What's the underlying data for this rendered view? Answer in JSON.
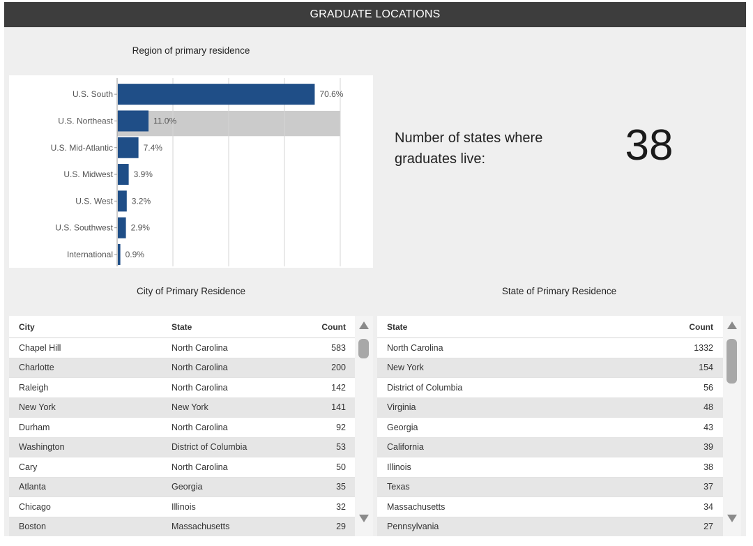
{
  "header": {
    "title": "GRADUATE LOCATIONS"
  },
  "chart_data": {
    "type": "bar",
    "orientation": "horizontal",
    "title": "Region of primary residence",
    "xlabel": "",
    "ylabel": "",
    "categories": [
      "U.S. South",
      "U.S. Northeast",
      "U.S. Mid-Atlantic",
      "U.S. Midwest",
      "U.S. West",
      "U.S. Southwest",
      "International"
    ],
    "values": [
      70.6,
      11.0,
      7.4,
      3.9,
      3.2,
      2.9,
      0.9
    ],
    "value_labels": [
      "70.6%",
      "11.0%",
      "7.4%",
      "3.9%",
      "3.2%",
      "2.9%",
      "0.9%"
    ],
    "xlim": [
      0,
      80
    ],
    "grid": true,
    "highlighted_category": "U.S. Northeast",
    "colors": {
      "bar": "#1f4e87",
      "highlight": "#cbcbcb",
      "grid": "#d4d4d4"
    }
  },
  "kpi": {
    "label": "Number of states where graduates live:",
    "value": "38"
  },
  "city_table": {
    "title": "City of Primary Residence",
    "columns": [
      "City",
      "State",
      "Count"
    ],
    "rows": [
      [
        "Chapel Hill",
        "North Carolina",
        "583"
      ],
      [
        "Charlotte",
        "North Carolina",
        "200"
      ],
      [
        "Raleigh",
        "North Carolina",
        "142"
      ],
      [
        "New York",
        "New York",
        "141"
      ],
      [
        "Durham",
        "North Carolina",
        "92"
      ],
      [
        "Washington",
        "District of Columbia",
        "53"
      ],
      [
        "Cary",
        "North Carolina",
        "50"
      ],
      [
        "Atlanta",
        "Georgia",
        "35"
      ],
      [
        "Chicago",
        "Illinois",
        "32"
      ],
      [
        "Boston",
        "Massachusetts",
        "29"
      ]
    ]
  },
  "state_table": {
    "title": "State of Primary Residence",
    "columns": [
      "State",
      "Count"
    ],
    "rows": [
      [
        "North Carolina",
        "1332"
      ],
      [
        "New York",
        "154"
      ],
      [
        "District of Columbia",
        "56"
      ],
      [
        "Virginia",
        "48"
      ],
      [
        "Georgia",
        "43"
      ],
      [
        "California",
        "39"
      ],
      [
        "Illinois",
        "38"
      ],
      [
        "Texas",
        "37"
      ],
      [
        "Massachusetts",
        "34"
      ],
      [
        "Pennsylvania",
        "27"
      ]
    ]
  }
}
